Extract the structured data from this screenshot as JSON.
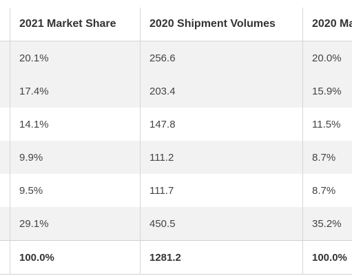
{
  "table": {
    "headers": [
      "",
      "2021 Market Share",
      "2020 Shipment Volumes",
      "2020 Ma"
    ],
    "rows": [
      [
        "",
        "20.1%",
        "256.6",
        "20.0%"
      ],
      [
        "",
        "17.4%",
        "203.4",
        "15.9%"
      ],
      [
        "",
        "14.1%",
        "147.8",
        "11.5%"
      ],
      [
        "",
        "9.9%",
        "111.2",
        "8.7%"
      ],
      [
        "",
        "9.5%",
        "111.7",
        "8.7%"
      ],
      [
        "",
        "29.1%",
        "450.5",
        "35.2%"
      ]
    ],
    "total": [
      "",
      "100.0%",
      "1281.2",
      "100.0%"
    ]
  }
}
